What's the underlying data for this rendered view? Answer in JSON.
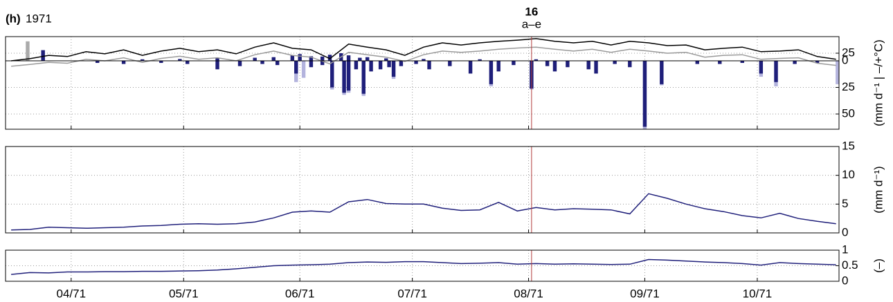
{
  "chart_data": [
    {
      "type": "bar",
      "label": "(h)",
      "title": "1971",
      "ylabel": "(mm d⁻¹ | –/+°C)",
      "annotation": {
        "x": 213.8,
        "label": "16",
        "sublabel": "a–e",
        "color": "#b03a3a"
      },
      "xlim": [
        73.5,
        295.8
      ],
      "xticks": [
        91,
        121,
        152,
        182,
        213,
        244,
        274
      ],
      "ylim": [
        -22.7,
        64.3
      ],
      "y_inverted": true,
      "yticks": [
        0,
        25,
        50
      ],
      "y2lim": [
        -225,
        79.5
      ],
      "y2ticks": [
        25
      ],
      "grid": true,
      "x": [
        75,
        80,
        85,
        90,
        95,
        100,
        105,
        110,
        115,
        120,
        125,
        130,
        135,
        140,
        145,
        150,
        155,
        160,
        165,
        170,
        175,
        180,
        185,
        190,
        195,
        200,
        205,
        210,
        215,
        220,
        225,
        230,
        235,
        240,
        245,
        250,
        255,
        260,
        265,
        270,
        275,
        280,
        285,
        290,
        295
      ],
      "series": [
        {
          "type": "bar",
          "axis": "y",
          "color": "#b3b3dd",
          "x": [
            151,
            153,
            160.6,
            163.8,
            165,
            169,
            177,
            203,
            213.8,
            244,
            248.5,
            275,
            279,
            295.4
          ],
          "values": [
            20,
            16,
            27,
            32,
            30,
            33,
            17,
            24,
            27,
            64,
            23,
            15,
            24,
            22
          ]
        },
        {
          "type": "bar",
          "axis": "y",
          "color": "#1f1f7a",
          "x": [
            98,
            105,
            115,
            122,
            130,
            136,
            142,
            146,
            151,
            155,
            158,
            160.6,
            163.8,
            165,
            167,
            169,
            171,
            173.5,
            175.8,
            177,
            179,
            183,
            186.5,
            192,
            197.5,
            203,
            205,
            209,
            213.8,
            218,
            220,
            223.4,
            229,
            231,
            236,
            240,
            244,
            248.5,
            258,
            264,
            270,
            275,
            279,
            284,
            290
          ],
          "values": [
            2,
            3,
            2,
            3,
            8,
            5,
            3,
            4,
            12,
            6,
            4,
            25,
            30,
            28,
            8,
            31,
            10,
            8,
            6,
            15,
            5,
            3,
            8,
            5,
            12,
            22,
            10,
            4,
            26,
            5,
            10,
            6,
            8,
            12,
            3,
            6,
            62,
            22,
            3,
            3,
            2,
            12,
            20,
            3,
            2
          ]
        },
        {
          "type": "bar",
          "axis": "y2",
          "color": "#aaaaaa",
          "x": [
            79.4,
            83.5
          ],
          "values": [
            64,
            20
          ]
        },
        {
          "type": "bar",
          "axis": "y2",
          "color": "#1f1f7a",
          "x": [
            83.5,
            110,
            120,
            130,
            140,
            145,
            150,
            152,
            155,
            158,
            160,
            163,
            165,
            168,
            170,
            175,
            185,
            200,
            215
          ],
          "values": [
            35,
            5,
            6,
            8,
            10,
            12,
            18,
            22,
            15,
            14,
            20,
            25,
            18,
            10,
            12,
            8,
            6,
            5,
            5
          ]
        },
        {
          "type": "line",
          "axis": "y2",
          "color": "#000000",
          "values": [
            0,
            7,
            18,
            14,
            30,
            23,
            36,
            18,
            32,
            41,
            30,
            36,
            23,
            45,
            59,
            41,
            36,
            7,
            55,
            45,
            36,
            18,
            45,
            59,
            52,
            59,
            64,
            68,
            73,
            64,
            59,
            64,
            52,
            64,
            59,
            50,
            52,
            36,
            41,
            45,
            30,
            32,
            36,
            14,
            5
          ]
        },
        {
          "type": "line",
          "axis": "y2",
          "color": "#999999",
          "values": [
            -18,
            -12,
            -5,
            -8,
            5,
            0,
            10,
            -5,
            8,
            15,
            5,
            10,
            0,
            20,
            32,
            18,
            12,
            -10,
            28,
            20,
            12,
            -2,
            20,
            32,
            28,
            32,
            38,
            42,
            45,
            38,
            32,
            38,
            28,
            38,
            32,
            25,
            28,
            12,
            18,
            20,
            5,
            8,
            10,
            -8,
            -15
          ]
        }
      ]
    },
    {
      "type": "line",
      "ylabel": "(mm d⁻¹)",
      "xlim": [
        73.5,
        295.8
      ],
      "xticks": [
        91,
        121,
        152,
        182,
        213,
        244,
        274
      ],
      "ylim": [
        0,
        15
      ],
      "yticks": [
        0,
        5,
        10,
        15
      ],
      "grid": true,
      "x": [
        75,
        80,
        85,
        90,
        95,
        100,
        105,
        110,
        115,
        120,
        125,
        130,
        135,
        140,
        145,
        150,
        155,
        160,
        165,
        170,
        175,
        180,
        185,
        190,
        195,
        200,
        205,
        210,
        215,
        220,
        225,
        230,
        235,
        240,
        245,
        250,
        255,
        260,
        265,
        270,
        275,
        280,
        285,
        290,
        295
      ],
      "series": [
        {
          "type": "line",
          "color": "#1f1f7a",
          "values": [
            0.5,
            0.6,
            1.0,
            0.9,
            0.8,
            0.9,
            1.0,
            1.2,
            1.3,
            1.5,
            1.6,
            1.5,
            1.6,
            1.9,
            2.6,
            3.6,
            3.8,
            3.6,
            5.4,
            5.8,
            5.1,
            5.0,
            5.0,
            4.3,
            3.9,
            4.0,
            5.3,
            3.8,
            4.4,
            4.0,
            4.2,
            4.1,
            4.0,
            3.3,
            6.8,
            6.0,
            5.0,
            4.2,
            3.7,
            3.0,
            2.6,
            3.4,
            2.5,
            2.0,
            1.6
          ]
        }
      ]
    },
    {
      "type": "line",
      "ylabel": "(–)",
      "xlim": [
        73.5,
        295.8
      ],
      "xticks": [
        {
          "value": 91,
          "label": "04/71"
        },
        {
          "value": 121,
          "label": "05/71"
        },
        {
          "value": 152,
          "label": "06/71"
        },
        {
          "value": 182,
          "label": "07/71"
        },
        {
          "value": 213,
          "label": "08/71"
        },
        {
          "value": 244,
          "label": "09/71"
        },
        {
          "value": 274,
          "label": "10/71"
        }
      ],
      "ylim": [
        0,
        1
      ],
      "yticks": [
        0,
        0.5,
        1
      ],
      "grid": true,
      "x": [
        75,
        80,
        85,
        90,
        95,
        100,
        105,
        110,
        115,
        120,
        125,
        130,
        135,
        140,
        145,
        150,
        155,
        160,
        165,
        170,
        175,
        180,
        185,
        190,
        195,
        200,
        205,
        210,
        215,
        220,
        225,
        230,
        235,
        240,
        245,
        250,
        255,
        260,
        265,
        270,
        275,
        280,
        285,
        290,
        295
      ],
      "series": [
        {
          "type": "line",
          "color": "#1f1f7a",
          "values": [
            0.22,
            0.28,
            0.27,
            0.3,
            0.3,
            0.31,
            0.31,
            0.32,
            0.32,
            0.33,
            0.34,
            0.36,
            0.4,
            0.45,
            0.5,
            0.52,
            0.53,
            0.55,
            0.6,
            0.62,
            0.61,
            0.63,
            0.63,
            0.6,
            0.57,
            0.58,
            0.6,
            0.55,
            0.57,
            0.55,
            0.56,
            0.55,
            0.54,
            0.55,
            0.7,
            0.68,
            0.65,
            0.62,
            0.6,
            0.57,
            0.52,
            0.6,
            0.57,
            0.55,
            0.53
          ]
        }
      ]
    }
  ]
}
